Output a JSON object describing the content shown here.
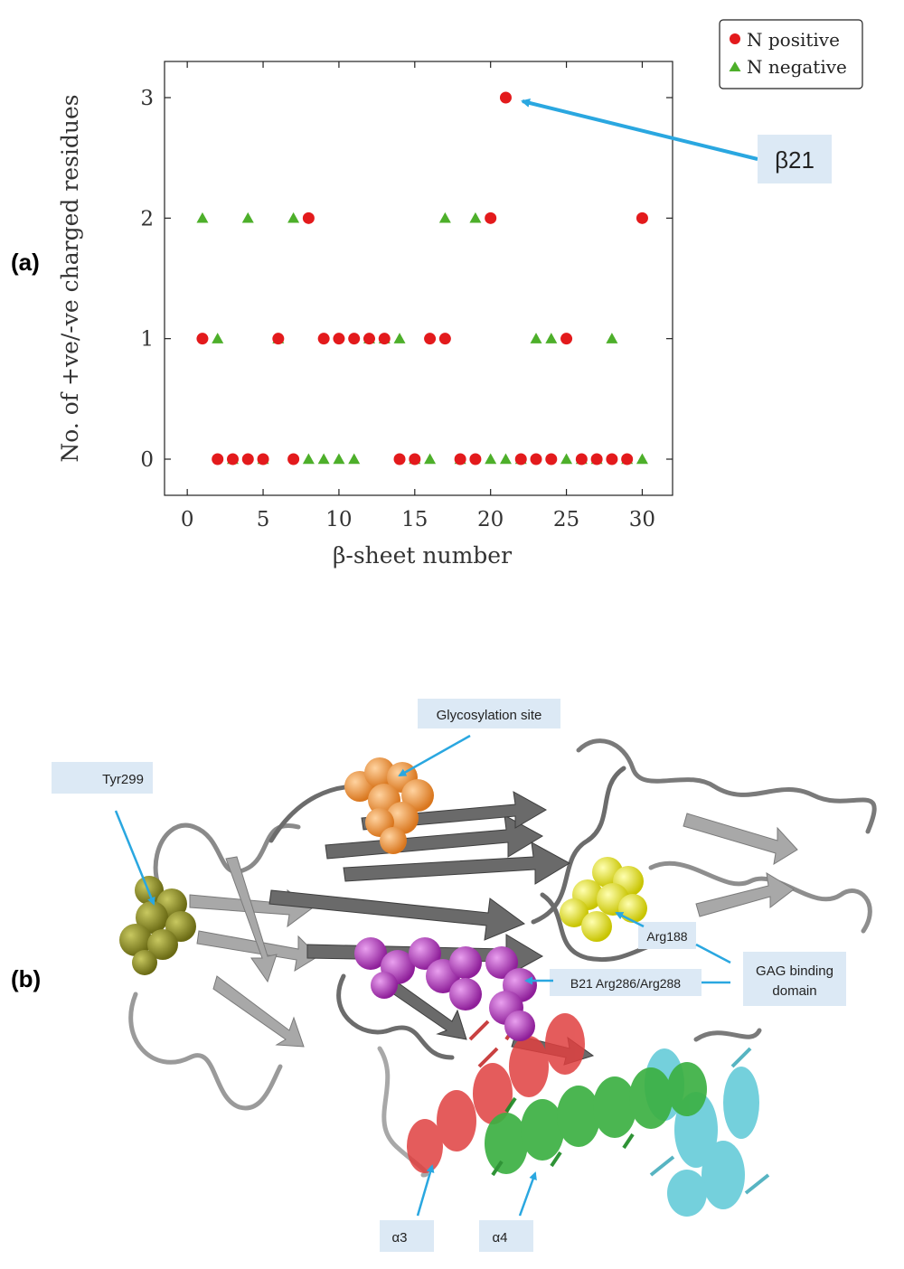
{
  "panels": {
    "a": {
      "label": "(a)"
    },
    "b": {
      "label": "(b)"
    }
  },
  "chart_data": {
    "type": "scatter",
    "title": "",
    "xlabel": "β-sheet number",
    "ylabel": "No. of +ve/-ve charged residues",
    "xlim": [
      -1.5,
      32
    ],
    "ylim": [
      -0.3,
      3.3
    ],
    "xticks": [
      0,
      5,
      10,
      15,
      20,
      25,
      30
    ],
    "yticks": [
      0,
      1,
      2,
      3
    ],
    "grid": false,
    "legend_position": "top-right",
    "series": [
      {
        "name": "N positive",
        "marker": "circle",
        "color": "#e31a1c",
        "points": [
          [
            1,
            1
          ],
          [
            2,
            0
          ],
          [
            3,
            0
          ],
          [
            4,
            0
          ],
          [
            5,
            0
          ],
          [
            6,
            1
          ],
          [
            7,
            0
          ],
          [
            8,
            2
          ],
          [
            9,
            1
          ],
          [
            10,
            1
          ],
          [
            11,
            1
          ],
          [
            12,
            1
          ],
          [
            13,
            1
          ],
          [
            14,
            0
          ],
          [
            15,
            0
          ],
          [
            16,
            1
          ],
          [
            17,
            1
          ],
          [
            18,
            0
          ],
          [
            19,
            0
          ],
          [
            20,
            2
          ],
          [
            21,
            3
          ],
          [
            22,
            0
          ],
          [
            23,
            0
          ],
          [
            24,
            0
          ],
          [
            25,
            1
          ],
          [
            26,
            0
          ],
          [
            27,
            0
          ],
          [
            28,
            0
          ],
          [
            29,
            0
          ],
          [
            30,
            2
          ]
        ]
      },
      {
        "name": "N negative",
        "marker": "triangle",
        "color": "#4daf2a",
        "points": [
          [
            1,
            2
          ],
          [
            2,
            1
          ],
          [
            3,
            0
          ],
          [
            4,
            2
          ],
          [
            5,
            0
          ],
          [
            6,
            1
          ],
          [
            7,
            2
          ],
          [
            8,
            0
          ],
          [
            9,
            0
          ],
          [
            10,
            0
          ],
          [
            11,
            0
          ],
          [
            12,
            1
          ],
          [
            13,
            1
          ],
          [
            14,
            1
          ],
          [
            15,
            0
          ],
          [
            16,
            0
          ],
          [
            17,
            2
          ],
          [
            18,
            0
          ],
          [
            19,
            2
          ],
          [
            20,
            0
          ],
          [
            21,
            0
          ],
          [
            22,
            0
          ],
          [
            23,
            1
          ],
          [
            24,
            1
          ],
          [
            25,
            0
          ],
          [
            26,
            0
          ],
          [
            27,
            0
          ],
          [
            28,
            1
          ],
          [
            29,
            0
          ],
          [
            30,
            0
          ]
        ]
      }
    ],
    "annotations": [
      {
        "text": "β21",
        "x": 21,
        "y": 3
      }
    ]
  },
  "structure_labels": {
    "glycosylation": "Glycosylation site",
    "tyr299": "Tyr299",
    "arg188": "Arg188",
    "gag1": "GAG binding",
    "gag2": "domain",
    "b21": "B21 Arg286/Arg288",
    "alpha3": "α3",
    "alpha4": "α4"
  },
  "colors": {
    "label_box": "#dce9f5",
    "arrow": "#2aa7e0",
    "ribbon": "#6a6a6a",
    "glycosylation_site": "#f39a3c",
    "tyr299": "#8a8a22",
    "arg188": "#eded22",
    "b21": "#b03bb8",
    "helix_alpha3": "#e04040",
    "helix_alpha4": "#3cb043",
    "helix_other": "#5cc8d6"
  }
}
